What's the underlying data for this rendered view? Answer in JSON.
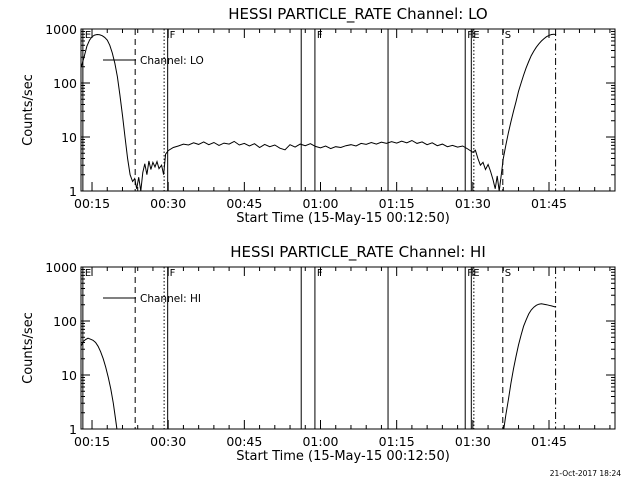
{
  "footer": {
    "timestamp": "21-Oct-2017 18:24"
  },
  "chart_data": [
    {
      "type": "line",
      "title": "HESSI PARTICLE_RATE Channel: LO",
      "xlabel": "Start Time (15-May-15 00:12:50)",
      "ylabel": "Counts/sec",
      "yscale": "log",
      "ylim": [
        1,
        1000
      ],
      "xlim_minutes": [
        12.83,
        118.0
      ],
      "xticks": [
        {
          "t": 15,
          "label": "00:15"
        },
        {
          "t": 30,
          "label": "00:30"
        },
        {
          "t": 45,
          "label": "00:45"
        },
        {
          "t": 60,
          "label": "01:00"
        },
        {
          "t": 75,
          "label": "01:15"
        },
        {
          "t": 90,
          "label": "01:30"
        },
        {
          "t": 105,
          "label": "01:45"
        }
      ],
      "yticks": [
        {
          "v": 1,
          "label": "1"
        },
        {
          "v": 10,
          "label": "10"
        },
        {
          "v": 100,
          "label": "100"
        },
        {
          "v": 1000,
          "label": "1000"
        }
      ],
      "legend": {
        "label": "Channel: LO",
        "placement": "top-left"
      },
      "events": [
        {
          "t": 13.2,
          "style": "solid",
          "label": "E"
        },
        {
          "t": 23.5,
          "style": "dashed",
          "label": ""
        },
        {
          "t": 29.2,
          "style": "dotted",
          "label": ""
        },
        {
          "t": 29.9,
          "style": "solid",
          "label": "F"
        },
        {
          "t": 56.2,
          "style": "solid",
          "label": ""
        },
        {
          "t": 58.9,
          "style": "solid",
          "label": "F"
        },
        {
          "t": 73.3,
          "style": "solid",
          "label": ""
        },
        {
          "t": 88.5,
          "style": "solid",
          "label": "F"
        },
        {
          "t": 89.7,
          "style": "solid",
          "label": "E"
        },
        {
          "t": 90.2,
          "style": "dotted",
          "label": ""
        },
        {
          "t": 95.9,
          "style": "dashed",
          "label": "S"
        },
        {
          "t": 106.3,
          "style": "dashdot",
          "label": ""
        }
      ],
      "series": [
        {
          "name": "Channel: LO",
          "points": [
            [
              12.9,
              200
            ],
            [
              13.5,
              320
            ],
            [
              14.0,
              480
            ],
            [
              14.5,
              620
            ],
            [
              15.0,
              720
            ],
            [
              15.5,
              770
            ],
            [
              16.0,
              790
            ],
            [
              16.5,
              780
            ],
            [
              17.0,
              750
            ],
            [
              17.5,
              700
            ],
            [
              18.0,
              620
            ],
            [
              18.5,
              500
            ],
            [
              19.0,
              360
            ],
            [
              19.5,
              230
            ],
            [
              20.0,
              130
            ],
            [
              20.5,
              60
            ],
            [
              21.0,
              25
            ],
            [
              21.5,
              10
            ],
            [
              22.0,
              4
            ],
            [
              22.5,
              2.0
            ],
            [
              23.0,
              1.5
            ],
            [
              23.4,
              1.7
            ],
            [
              23.8,
              1.1
            ],
            [
              24.2,
              1.8
            ],
            [
              24.6,
              1.0
            ],
            [
              25.0,
              2.2
            ],
            [
              25.4,
              3.2
            ],
            [
              25.8,
              2.0
            ],
            [
              26.2,
              3.6
            ],
            [
              26.6,
              2.5
            ],
            [
              27.0,
              3.4
            ],
            [
              27.4,
              2.8
            ],
            [
              27.8,
              3.5
            ],
            [
              28.2,
              2.6
            ],
            [
              28.7,
              3.0
            ],
            [
              29.1,
              2.0
            ],
            [
              29.5,
              4.8
            ],
            [
              30.0,
              5.6
            ],
            [
              31.0,
              6.4
            ],
            [
              32.0,
              6.8
            ],
            [
              33.0,
              7.4
            ],
            [
              34.0,
              7.1
            ],
            [
              35.0,
              7.8
            ],
            [
              36.0,
              7.3
            ],
            [
              37.0,
              8.1
            ],
            [
              38.0,
              7.2
            ],
            [
              39.0,
              7.9
            ],
            [
              40.0,
              7.0
            ],
            [
              41.0,
              7.7
            ],
            [
              42.0,
              7.4
            ],
            [
              43.0,
              8.3
            ],
            [
              44.0,
              7.1
            ],
            [
              45.0,
              7.6
            ],
            [
              46.0,
              6.8
            ],
            [
              47.0,
              7.5
            ],
            [
              48.0,
              6.4
            ],
            [
              49.0,
              7.3
            ],
            [
              50.0,
              6.6
            ],
            [
              51.0,
              7.1
            ],
            [
              52.0,
              6.2
            ],
            [
              53.0,
              5.8
            ],
            [
              54.0,
              7.2
            ],
            [
              55.0,
              6.5
            ],
            [
              56.0,
              7.4
            ],
            [
              57.0,
              6.9
            ],
            [
              58.0,
              7.5
            ],
            [
              59.0,
              6.7
            ],
            [
              60.0,
              6.3
            ],
            [
              61.0,
              6.8
            ],
            [
              62.0,
              6.1
            ],
            [
              63.0,
              6.6
            ],
            [
              64.0,
              6.4
            ],
            [
              65.0,
              6.9
            ],
            [
              66.0,
              7.2
            ],
            [
              67.0,
              6.8
            ],
            [
              68.0,
              7.6
            ],
            [
              69.0,
              7.3
            ],
            [
              70.0,
              7.9
            ],
            [
              71.0,
              7.4
            ],
            [
              72.0,
              8.0
            ],
            [
              73.0,
              7.6
            ],
            [
              74.0,
              8.2
            ],
            [
              75.0,
              7.7
            ],
            [
              76.0,
              8.4
            ],
            [
              77.0,
              7.8
            ],
            [
              78.0,
              8.6
            ],
            [
              79.0,
              7.6
            ],
            [
              80.0,
              8.1
            ],
            [
              81.0,
              7.2
            ],
            [
              82.0,
              7.8
            ],
            [
              83.0,
              6.9
            ],
            [
              84.0,
              7.4
            ],
            [
              85.0,
              6.6
            ],
            [
              86.0,
              7.0
            ],
            [
              87.0,
              6.5
            ],
            [
              88.0,
              6.8
            ],
            [
              89.0,
              6.0
            ],
            [
              90.0,
              5.2
            ],
            [
              90.5,
              5.7
            ],
            [
              91.0,
              4.0
            ],
            [
              91.5,
              3.0
            ],
            [
              92.0,
              3.4
            ],
            [
              92.5,
              2.5
            ],
            [
              93.0,
              3.1
            ],
            [
              93.5,
              2.3
            ],
            [
              94.0,
              1.6
            ],
            [
              94.4,
              1.1
            ],
            [
              94.8,
              1.9
            ],
            [
              95.2,
              1.0
            ],
            [
              95.6,
              2.0
            ],
            [
              96.0,
              4.0
            ],
            [
              96.5,
              7.0
            ],
            [
              97.0,
              12
            ],
            [
              97.5,
              19
            ],
            [
              98.0,
              30
            ],
            [
              98.5,
              45
            ],
            [
              99.0,
              70
            ],
            [
              99.5,
              100
            ],
            [
              100.0,
              140
            ],
            [
              100.5,
              190
            ],
            [
              101.0,
              250
            ],
            [
              101.5,
              320
            ],
            [
              102.0,
              390
            ],
            [
              102.5,
              460
            ],
            [
              103.0,
              530
            ],
            [
              103.5,
              600
            ],
            [
              104.0,
              660
            ],
            [
              104.5,
              720
            ],
            [
              105.0,
              760
            ],
            [
              105.5,
              790
            ],
            [
              106.0,
              800
            ],
            [
              106.4,
              780
            ]
          ]
        }
      ]
    },
    {
      "type": "line",
      "title": "HESSI PARTICLE_RATE Channel: HI",
      "xlabel": "Start Time (15-May-15 00:12:50)",
      "ylabel": "Counts/sec",
      "yscale": "log",
      "ylim": [
        1,
        1000
      ],
      "xlim_minutes": [
        12.83,
        118.0
      ],
      "xticks": [
        {
          "t": 15,
          "label": "00:15"
        },
        {
          "t": 30,
          "label": "00:30"
        },
        {
          "t": 45,
          "label": "00:45"
        },
        {
          "t": 60,
          "label": "01:00"
        },
        {
          "t": 75,
          "label": "01:15"
        },
        {
          "t": 90,
          "label": "01:30"
        },
        {
          "t": 105,
          "label": "01:45"
        }
      ],
      "yticks": [
        {
          "v": 1,
          "label": "1"
        },
        {
          "v": 10,
          "label": "10"
        },
        {
          "v": 100,
          "label": "100"
        },
        {
          "v": 1000,
          "label": "1000"
        }
      ],
      "legend": {
        "label": "Channel: HI",
        "placement": "top-left"
      },
      "events": [
        {
          "t": 13.2,
          "style": "solid",
          "label": "E"
        },
        {
          "t": 23.5,
          "style": "dashed",
          "label": ""
        },
        {
          "t": 29.2,
          "style": "dotted",
          "label": ""
        },
        {
          "t": 29.9,
          "style": "solid",
          "label": "F"
        },
        {
          "t": 56.2,
          "style": "solid",
          "label": ""
        },
        {
          "t": 58.9,
          "style": "solid",
          "label": "F"
        },
        {
          "t": 73.3,
          "style": "solid",
          "label": ""
        },
        {
          "t": 88.5,
          "style": "solid",
          "label": "F"
        },
        {
          "t": 89.7,
          "style": "solid",
          "label": "E"
        },
        {
          "t": 90.2,
          "style": "dotted",
          "label": ""
        },
        {
          "t": 95.9,
          "style": "dashed",
          "label": "S"
        },
        {
          "t": 106.3,
          "style": "dashdot",
          "label": ""
        }
      ],
      "series": [
        {
          "name": "Channel: HI",
          "points": [
            [
              12.9,
              35
            ],
            [
              13.3,
              42
            ],
            [
              13.7,
              45
            ],
            [
              14.2,
              48
            ],
            [
              14.7,
              46
            ],
            [
              15.2,
              44
            ],
            [
              15.7,
              40
            ],
            [
              16.2,
              34
            ],
            [
              16.7,
              27
            ],
            [
              17.2,
              20
            ],
            [
              17.7,
              14
            ],
            [
              18.2,
              9
            ],
            [
              18.7,
              5.5
            ],
            [
              19.2,
              3
            ],
            [
              19.6,
              1.6
            ],
            [
              19.9,
              1.0
            ],
            [
              96.1,
              1.0
            ],
            [
              96.5,
              1.8
            ],
            [
              97.0,
              3.5
            ],
            [
              97.5,
              7
            ],
            [
              98.0,
              13
            ],
            [
              98.5,
              22
            ],
            [
              99.0,
              36
            ],
            [
              99.5,
              55
            ],
            [
              100.0,
              80
            ],
            [
              100.5,
              105
            ],
            [
              101.0,
              135
            ],
            [
              101.5,
              160
            ],
            [
              102.0,
              180
            ],
            [
              102.5,
              195
            ],
            [
              103.0,
              205
            ],
            [
              103.5,
              208
            ],
            [
              104.0,
              205
            ],
            [
              104.5,
              200
            ],
            [
              105.0,
              195
            ],
            [
              105.5,
              190
            ],
            [
              106.0,
              185
            ],
            [
              106.3,
              182
            ]
          ]
        }
      ]
    }
  ]
}
